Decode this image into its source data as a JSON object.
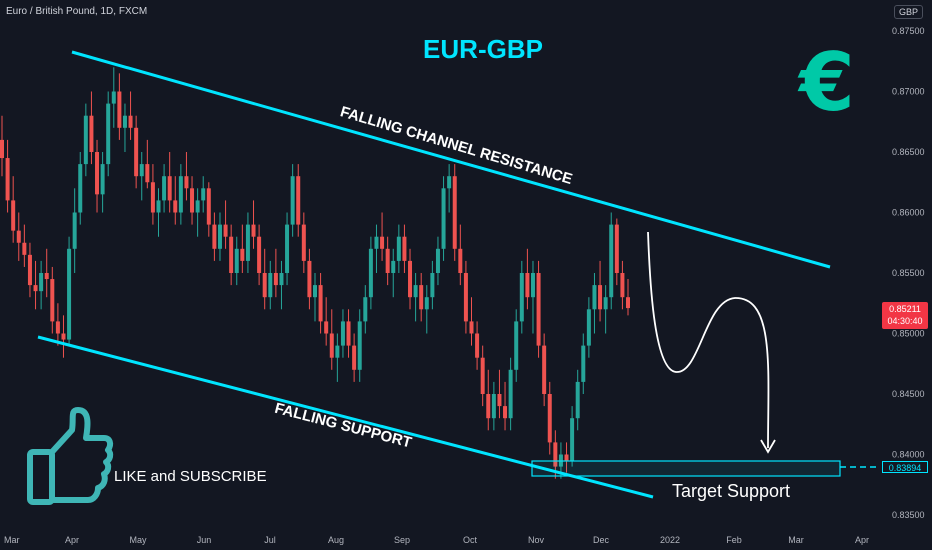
{
  "header": {
    "symbol": "Euro / British Pound, 1D, FXCM",
    "currency": "GBP"
  },
  "price_badge": {
    "price": "0.85211",
    "countdown": "04:30:40"
  },
  "target_badge": "0.83894",
  "annotations": {
    "title": "EUR-GBP",
    "resistance": "FALLING CHANNEL RESISTANCE",
    "support": "FALLING SUPPORT",
    "target": "Target Support",
    "cta": "LIKE and SUBSCRIBE",
    "euro_symbol": "€"
  },
  "colors": {
    "up": "#26a69a",
    "down": "#ef5350",
    "channel": "#00e5ff",
    "background": "#131722"
  },
  "chart_data": {
    "type": "candlestick",
    "title": "EUR-GBP",
    "y_ticks": [
      "0.87500",
      "0.87000",
      "0.86500",
      "0.86000",
      "0.85500",
      "0.85000",
      "0.84500",
      "0.84000",
      "0.83500"
    ],
    "x_ticks": [
      "Mar",
      "Apr",
      "May",
      "Jun",
      "Jul",
      "Aug",
      "Sep",
      "Oct",
      "Nov",
      "Dec",
      "2022",
      "Feb",
      "Mar",
      "Apr"
    ],
    "ylim": [
      0.8345,
      0.8758
    ],
    "grid": false,
    "current_price": 0.85211,
    "target_level": 0.83894,
    "series": [
      {
        "name": "",
        "values": [
          [
            0.866,
            0.868,
            0.863,
            0.8645
          ],
          [
            0.8645,
            0.866,
            0.86,
            0.861
          ],
          [
            0.861,
            0.863,
            0.8575,
            0.8585
          ],
          [
            0.8585,
            0.86,
            0.856,
            0.8575
          ],
          [
            0.8575,
            0.859,
            0.8555,
            0.8565
          ],
          [
            0.8565,
            0.8575,
            0.853,
            0.854
          ],
          [
            0.854,
            0.856,
            0.852,
            0.8535
          ],
          [
            0.8535,
            0.856,
            0.852,
            0.855
          ],
          [
            0.855,
            0.857,
            0.853,
            0.8545
          ],
          [
            0.8545,
            0.8555,
            0.85,
            0.851
          ],
          [
            0.851,
            0.8525,
            0.849,
            0.85
          ],
          [
            0.85,
            0.8515,
            0.848,
            0.8495
          ],
          [
            0.8495,
            0.858,
            0.849,
            0.857
          ],
          [
            0.857,
            0.862,
            0.855,
            0.86
          ],
          [
            0.86,
            0.865,
            0.859,
            0.864
          ],
          [
            0.864,
            0.869,
            0.863,
            0.868
          ],
          [
            0.868,
            0.87,
            0.864,
            0.865
          ],
          [
            0.865,
            0.866,
            0.86,
            0.8615
          ],
          [
            0.8615,
            0.865,
            0.86,
            0.864
          ],
          [
            0.864,
            0.87,
            0.863,
            0.869
          ],
          [
            0.869,
            0.872,
            0.867,
            0.87
          ],
          [
            0.87,
            0.8715,
            0.866,
            0.867
          ],
          [
            0.867,
            0.869,
            0.865,
            0.868
          ],
          [
            0.868,
            0.87,
            0.866,
            0.867
          ],
          [
            0.867,
            0.868,
            0.862,
            0.863
          ],
          [
            0.863,
            0.865,
            0.861,
            0.864
          ],
          [
            0.864,
            0.866,
            0.862,
            0.8625
          ],
          [
            0.8625,
            0.864,
            0.859,
            0.86
          ],
          [
            0.86,
            0.862,
            0.858,
            0.861
          ],
          [
            0.861,
            0.864,
            0.86,
            0.863
          ],
          [
            0.863,
            0.865,
            0.86,
            0.861
          ],
          [
            0.861,
            0.863,
            0.859,
            0.86
          ],
          [
            0.86,
            0.864,
            0.859,
            0.863
          ],
          [
            0.863,
            0.865,
            0.861,
            0.862
          ],
          [
            0.862,
            0.863,
            0.859,
            0.86
          ],
          [
            0.86,
            0.862,
            0.858,
            0.861
          ],
          [
            0.861,
            0.863,
            0.86,
            0.862
          ],
          [
            0.862,
            0.8625,
            0.858,
            0.859
          ],
          [
            0.859,
            0.86,
            0.856,
            0.857
          ],
          [
            0.857,
            0.86,
            0.856,
            0.859
          ],
          [
            0.859,
            0.861,
            0.857,
            0.858
          ],
          [
            0.858,
            0.859,
            0.854,
            0.855
          ],
          [
            0.855,
            0.858,
            0.854,
            0.857
          ],
          [
            0.857,
            0.859,
            0.855,
            0.856
          ],
          [
            0.856,
            0.86,
            0.855,
            0.859
          ],
          [
            0.859,
            0.861,
            0.857,
            0.858
          ],
          [
            0.858,
            0.859,
            0.854,
            0.855
          ],
          [
            0.855,
            0.857,
            0.852,
            0.853
          ],
          [
            0.853,
            0.856,
            0.852,
            0.855
          ],
          [
            0.855,
            0.857,
            0.853,
            0.854
          ],
          [
            0.854,
            0.856,
            0.852,
            0.855
          ],
          [
            0.855,
            0.86,
            0.854,
            0.859
          ],
          [
            0.859,
            0.864,
            0.858,
            0.863
          ],
          [
            0.863,
            0.864,
            0.858,
            0.859
          ],
          [
            0.859,
            0.86,
            0.855,
            0.856
          ],
          [
            0.856,
            0.857,
            0.852,
            0.853
          ],
          [
            0.853,
            0.855,
            0.851,
            0.854
          ],
          [
            0.854,
            0.855,
            0.85,
            0.851
          ],
          [
            0.851,
            0.853,
            0.849,
            0.85
          ],
          [
            0.85,
            0.852,
            0.847,
            0.848
          ],
          [
            0.848,
            0.85,
            0.846,
            0.849
          ],
          [
            0.849,
            0.852,
            0.848,
            0.851
          ],
          [
            0.851,
            0.852,
            0.848,
            0.849
          ],
          [
            0.849,
            0.85,
            0.846,
            0.847
          ],
          [
            0.847,
            0.852,
            0.846,
            0.851
          ],
          [
            0.851,
            0.854,
            0.85,
            0.853
          ],
          [
            0.853,
            0.858,
            0.852,
            0.857
          ],
          [
            0.857,
            0.859,
            0.855,
            0.858
          ],
          [
            0.858,
            0.86,
            0.856,
            0.857
          ],
          [
            0.857,
            0.858,
            0.854,
            0.855
          ],
          [
            0.855,
            0.857,
            0.853,
            0.856
          ],
          [
            0.856,
            0.859,
            0.855,
            0.858
          ],
          [
            0.858,
            0.859,
            0.855,
            0.856
          ],
          [
            0.856,
            0.857,
            0.852,
            0.853
          ],
          [
            0.853,
            0.855,
            0.851,
            0.854
          ],
          [
            0.854,
            0.855,
            0.851,
            0.852
          ],
          [
            0.852,
            0.854,
            0.85,
            0.853
          ],
          [
            0.853,
            0.856,
            0.852,
            0.855
          ],
          [
            0.855,
            0.858,
            0.854,
            0.857
          ],
          [
            0.857,
            0.863,
            0.856,
            0.862
          ],
          [
            0.862,
            0.864,
            0.86,
            0.863
          ],
          [
            0.863,
            0.864,
            0.856,
            0.857
          ],
          [
            0.857,
            0.859,
            0.854,
            0.855
          ],
          [
            0.855,
            0.856,
            0.85,
            0.851
          ],
          [
            0.851,
            0.853,
            0.849,
            0.85
          ],
          [
            0.85,
            0.851,
            0.847,
            0.848
          ],
          [
            0.848,
            0.849,
            0.844,
            0.845
          ],
          [
            0.845,
            0.847,
            0.842,
            0.843
          ],
          [
            0.843,
            0.846,
            0.842,
            0.845
          ],
          [
            0.845,
            0.847,
            0.843,
            0.844
          ],
          [
            0.844,
            0.846,
            0.842,
            0.843
          ],
          [
            0.843,
            0.848,
            0.842,
            0.847
          ],
          [
            0.847,
            0.852,
            0.846,
            0.851
          ],
          [
            0.851,
            0.856,
            0.85,
            0.855
          ],
          [
            0.855,
            0.857,
            0.852,
            0.853
          ],
          [
            0.853,
            0.856,
            0.85,
            0.855
          ],
          [
            0.855,
            0.856,
            0.848,
            0.849
          ],
          [
            0.849,
            0.85,
            0.844,
            0.845
          ],
          [
            0.845,
            0.846,
            0.84,
            0.841
          ],
          [
            0.841,
            0.842,
            0.838,
            0.839
          ],
          [
            0.839,
            0.841,
            0.838,
            0.84
          ],
          [
            0.84,
            0.841,
            0.8385,
            0.8395
          ],
          [
            0.8395,
            0.844,
            0.839,
            0.843
          ],
          [
            0.843,
            0.847,
            0.842,
            0.846
          ],
          [
            0.846,
            0.85,
            0.845,
            0.849
          ],
          [
            0.849,
            0.853,
            0.848,
            0.852
          ],
          [
            0.852,
            0.855,
            0.85,
            0.854
          ],
          [
            0.854,
            0.856,
            0.851,
            0.852
          ],
          [
            0.852,
            0.854,
            0.85,
            0.853
          ],
          [
            0.853,
            0.86,
            0.852,
            0.859
          ],
          [
            0.859,
            0.8595,
            0.854,
            0.855
          ],
          [
            0.855,
            0.856,
            0.852,
            0.853
          ],
          [
            0.853,
            0.8545,
            0.8515,
            0.8521
          ]
        ]
      }
    ]
  }
}
